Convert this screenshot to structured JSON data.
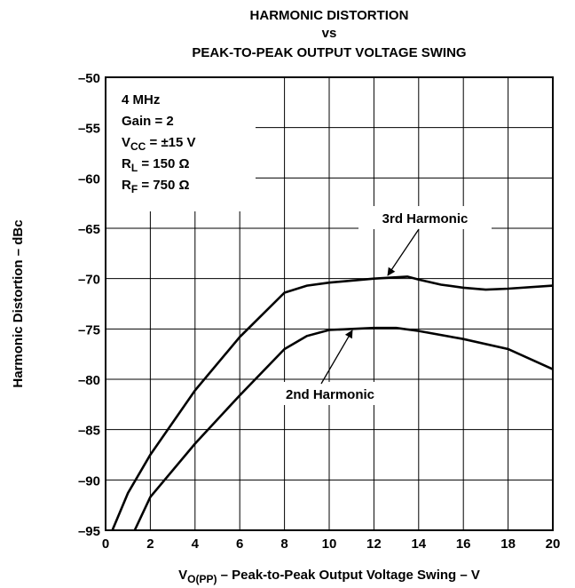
{
  "chart_data": {
    "type": "line",
    "title": [
      "HARMONIC DISTORTION",
      "vs",
      "PEAK-TO-PEAK OUTPUT VOLTAGE SWING"
    ],
    "ylabel": "Harmonic Distortion – dBc",
    "xlabel": {
      "main": "V",
      "sub": "O(PP)",
      "rest": " – Peak-to-Peak Output Voltage Swing – V"
    },
    "conditions": [
      {
        "main": "4 MHz"
      },
      {
        "main": "Gain = 2"
      },
      {
        "main": "V",
        "sub": "CC",
        "rest": " = ±15 V"
      },
      {
        "main": "R",
        "sub": "L",
        "rest": " = 150 Ω"
      },
      {
        "main": "R",
        "sub": "F",
        "rest": " = 750 Ω"
      }
    ],
    "annotations": [
      "3rd Harmonic",
      "2nd Harmonic"
    ],
    "xlim": [
      0,
      20
    ],
    "ylim": [
      -95,
      -50
    ],
    "xticks": [
      0,
      2,
      4,
      6,
      8,
      10,
      12,
      14,
      16,
      18,
      20
    ],
    "yticks": [
      {
        "value": -50,
        "label": "–50"
      },
      {
        "value": -55,
        "label": "–55"
      },
      {
        "value": -60,
        "label": "–60"
      },
      {
        "value": -65,
        "label": "–65"
      },
      {
        "value": -70,
        "label": "–70"
      },
      {
        "value": -75,
        "label": "–75"
      },
      {
        "value": -80,
        "label": "–80"
      },
      {
        "value": -85,
        "label": "–85"
      },
      {
        "value": -90,
        "label": "–90"
      },
      {
        "value": -95,
        "label": "–95"
      }
    ],
    "grid": true,
    "series": [
      {
        "name": "3rd Harmonic",
        "color": "#000000",
        "x": [
          0.3,
          1,
          2,
          4,
          6,
          8,
          9,
          10,
          12,
          13.5,
          14,
          15,
          16,
          17,
          18,
          20
        ],
        "values": [
          -95,
          -91.3,
          -87.5,
          -81.1,
          -75.8,
          -71.4,
          -70.7,
          -70.4,
          -70,
          -69.8,
          -70.1,
          -70.6,
          -70.9,
          -71.1,
          -71,
          -70.7
        ]
      },
      {
        "name": "2nd Harmonic",
        "color": "#000000",
        "x": [
          1.3,
          2,
          4,
          6,
          8,
          9,
          10,
          12,
          13,
          14,
          16,
          18,
          20
        ],
        "values": [
          -95,
          -91.7,
          -86.4,
          -81.6,
          -77,
          -75.7,
          -75.1,
          -74.9,
          -74.9,
          -75.2,
          -76,
          -77,
          -79
        ]
      }
    ]
  }
}
